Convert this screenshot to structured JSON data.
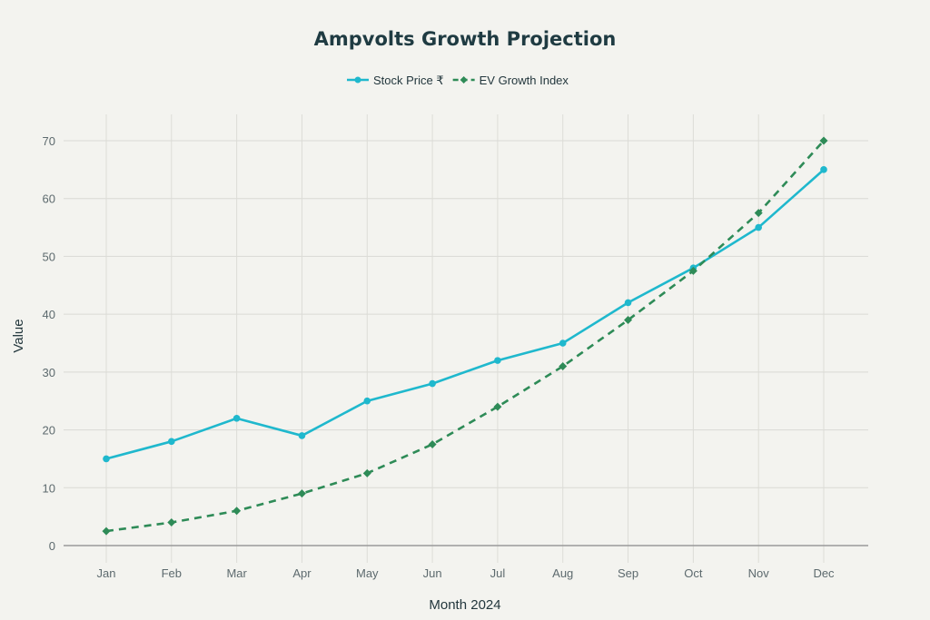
{
  "chart_data": {
    "type": "line",
    "title": "Ampvolts Growth Projection",
    "xlabel": "Month 2024",
    "ylabel": "Value",
    "categories": [
      "Jan",
      "Feb",
      "Mar",
      "Apr",
      "May",
      "Jun",
      "Jul",
      "Aug",
      "Sep",
      "Oct",
      "Nov",
      "Dec"
    ],
    "ylim": [
      0,
      70
    ],
    "yticks": [
      0,
      10,
      20,
      30,
      40,
      50,
      60,
      70
    ],
    "grid": true,
    "legend_position": "top-center",
    "series": [
      {
        "name": "Stock Price ₹",
        "color": "#1fb8cd",
        "style": "solid",
        "marker": "circle",
        "values": [
          15,
          18,
          22,
          19,
          25,
          28,
          32,
          35,
          42,
          48,
          55,
          65
        ]
      },
      {
        "name": "EV Growth Index",
        "color": "#2e8b57",
        "style": "dashed",
        "marker": "diamond",
        "values": [
          2.5,
          4,
          6,
          9,
          12.5,
          17.5,
          24,
          31,
          39,
          47.5,
          57.5,
          70
        ]
      }
    ]
  }
}
